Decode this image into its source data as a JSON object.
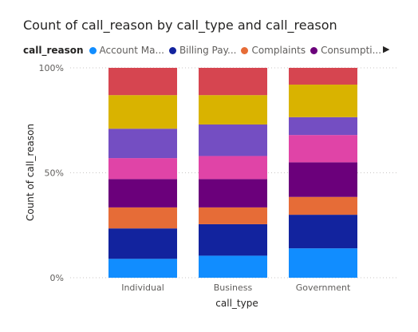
{
  "chart_data": {
    "type": "bar",
    "stacked": true,
    "normalized": true,
    "title": "Count of call_reason by call_type and call_reason",
    "xlabel": "call_type",
    "ylabel": "Count of call_reason",
    "legend_title": "call_reason",
    "legend_placement": "top-left",
    "categories": [
      "Individual",
      "Business",
      "Government"
    ],
    "y_ticks": [
      "0%",
      "50%",
      "100%"
    ],
    "ylim": [
      0,
      100
    ],
    "grid": true,
    "series": [
      {
        "name": "Account Ma...",
        "color": "#118DFF",
        "values": [
          9,
          10.5,
          14
        ]
      },
      {
        "name": "Billing Pay...",
        "color": "#12239E",
        "values": [
          14.5,
          15,
          16
        ]
      },
      {
        "name": "Complaints",
        "color": "#E66C37",
        "values": [
          10,
          8,
          8.5
        ]
      },
      {
        "name": "Consumpti...",
        "color": "#6B007B",
        "values": [
          13.5,
          13.5,
          16.5
        ]
      },
      {
        "name": "",
        "color": "#E044A7",
        "values": [
          10,
          11,
          13
        ]
      },
      {
        "name": "",
        "color": "#744EC2",
        "values": [
          14,
          15,
          8.5
        ]
      },
      {
        "name": "",
        "color": "#D9B300",
        "values": [
          16,
          14,
          15.5
        ]
      },
      {
        "name": "",
        "color": "#D64550",
        "values": [
          13,
          13,
          8
        ]
      }
    ]
  }
}
